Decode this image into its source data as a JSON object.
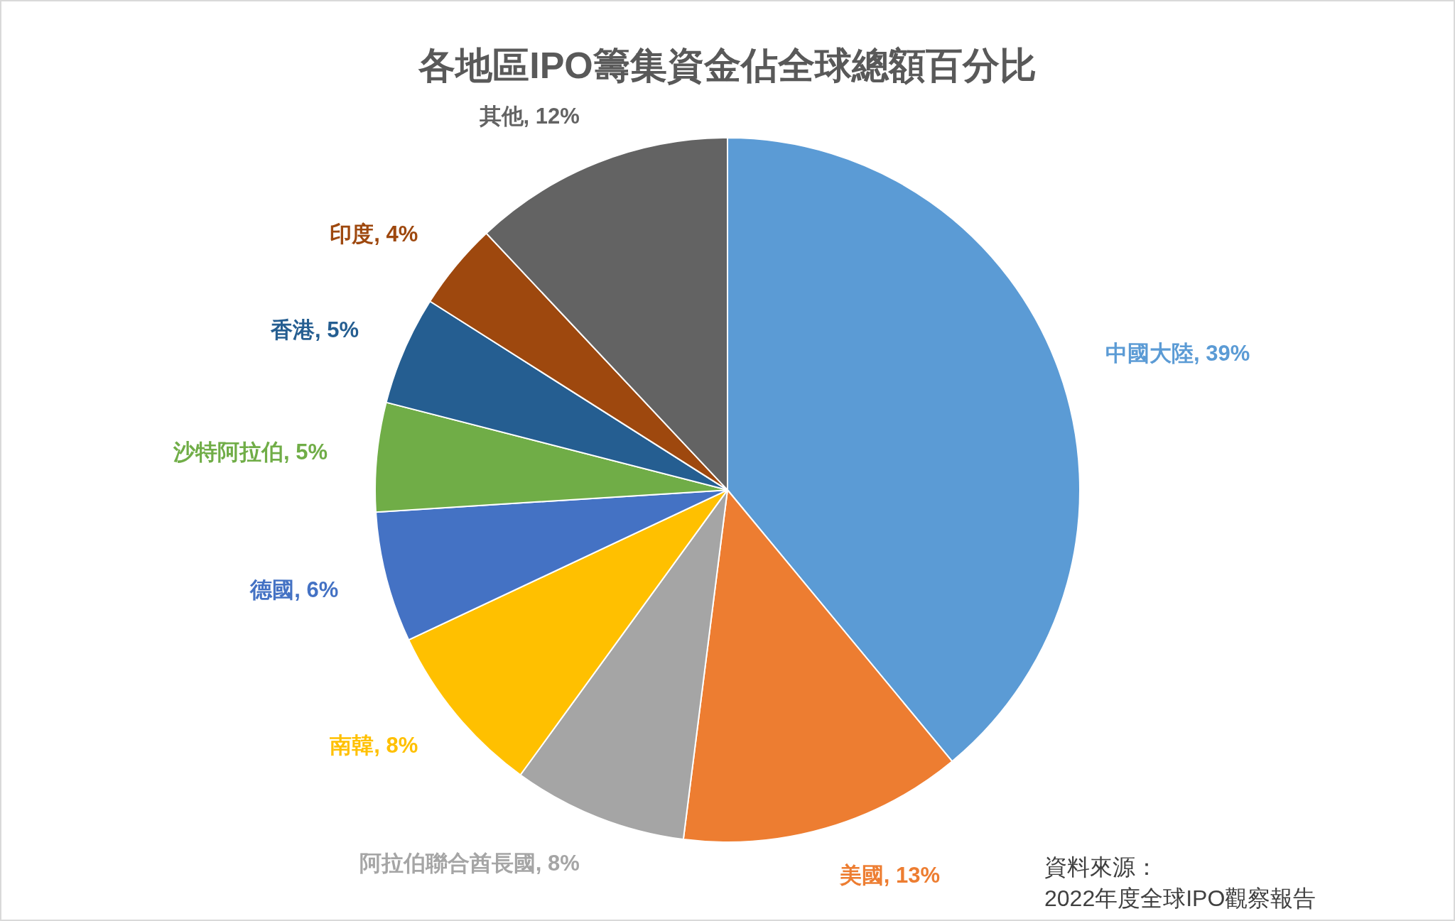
{
  "chart_data": {
    "type": "pie",
    "title": "各地區IPO籌集資金佔全球總額百分比",
    "categories": [
      "中國大陸",
      "美國",
      "阿拉伯聯合酋長國",
      "南韓",
      "德國",
      "沙特阿拉伯",
      "香港",
      "印度",
      "其他"
    ],
    "values": [
      39,
      13,
      8,
      8,
      6,
      5,
      5,
      4,
      12
    ],
    "colors": [
      "#5b9bd5",
      "#ed7d31",
      "#a5a5a5",
      "#ffc000",
      "#4472c4",
      "#70ad47",
      "#255e91",
      "#9e480e",
      "#636363"
    ],
    "value_labels": [
      "39%",
      "13%",
      "8%",
      "8%",
      "6%",
      "5%",
      "5%",
      "4%",
      "12%"
    ],
    "annotations": [
      "資料來源：",
      "2022年度全球IPO觀察報告"
    ]
  }
}
